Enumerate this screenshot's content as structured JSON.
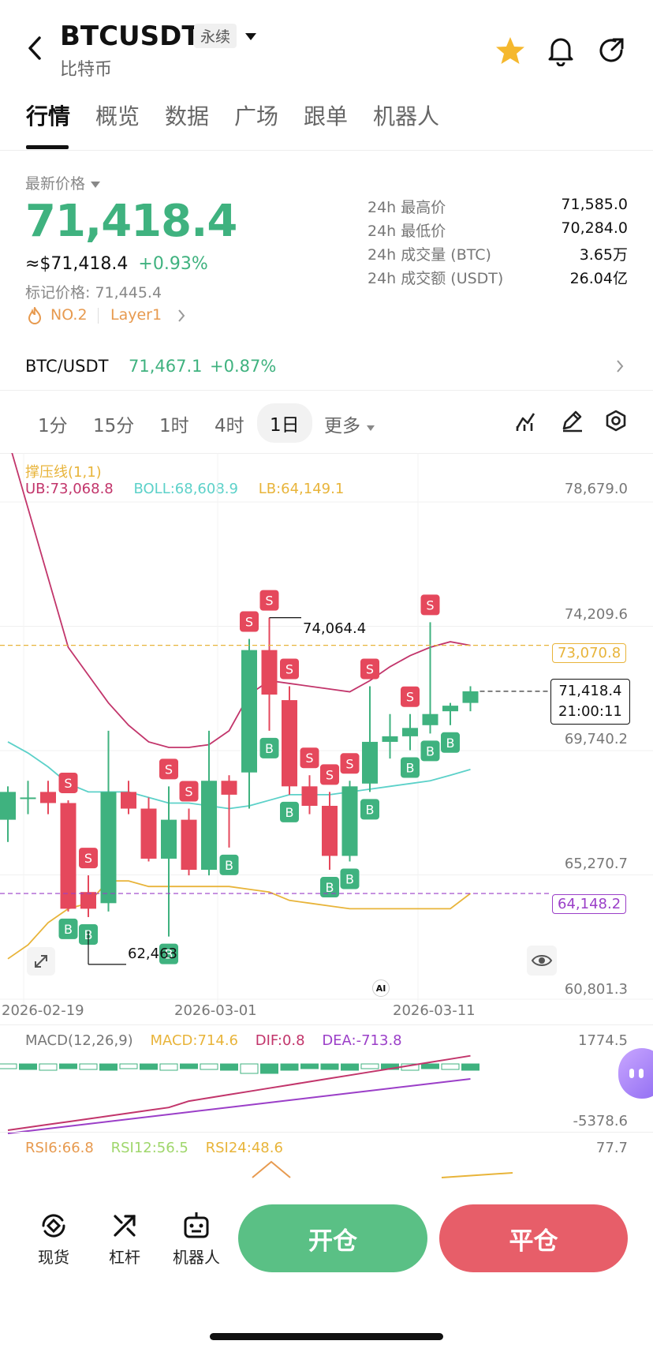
{
  "header": {
    "symbol": "BTCUSDT",
    "perp_badge": "永续",
    "subtitle": "比特币"
  },
  "tabs": [
    {
      "label": "行情",
      "active": true
    },
    {
      "label": "概览",
      "active": false
    },
    {
      "label": "数据",
      "active": false
    },
    {
      "label": "广场",
      "active": false
    },
    {
      "label": "跟单",
      "active": false
    },
    {
      "label": "机器人",
      "active": false
    }
  ],
  "price": {
    "latest_label": "最新价格",
    "last": "71,418.4",
    "usd_equiv": "≈$71,418.4",
    "change_pct": "+0.93%",
    "mark_price": "标记价格: 71,445.4",
    "rank_tag": "NO.2",
    "category_tag": "Layer1"
  },
  "stats": [
    {
      "label": "24h 最高价",
      "value": "71,585.0"
    },
    {
      "label": "24h 最低价",
      "value": "70,284.0"
    },
    {
      "label": "24h 成交量 (BTC)",
      "value": "3.65万"
    },
    {
      "label": "24h 成交额 (USDT)",
      "value": "26.04亿"
    }
  ],
  "spot": {
    "pair": "BTC/USDT",
    "price": "71,467.1",
    "change": "+0.87%"
  },
  "timeframes": [
    {
      "label": "1分",
      "active": false
    },
    {
      "label": "15分",
      "active": false
    },
    {
      "label": "1时",
      "active": false
    },
    {
      "label": "4时",
      "active": false
    },
    {
      "label": "1日",
      "active": true
    },
    {
      "label": "更多",
      "active": false
    }
  ],
  "chart_legend": {
    "sr": "撑压线(1,1)",
    "ub": "UB:73,068.8",
    "boll": "BOLL:68,608.9",
    "lb": "LB:64,149.1"
  },
  "macd_legend": {
    "name": "MACD(12,26,9)",
    "macd": "MACD:714.6",
    "dif": "DIF:0.8",
    "dea": "DEA:-713.8",
    "top": "1774.5",
    "bottom": "-5378.6"
  },
  "rsi_legend": {
    "rsi6": "RSI6:66.8",
    "rsi12": "RSI12:56.5",
    "rsi24": "RSI24:48.6",
    "top": "77.7"
  },
  "chart_data": {
    "type": "candlestick",
    "y_ticks": [
      "78,679.0",
      "74,209.6",
      "69,740.2",
      "65,270.7",
      "60,801.3"
    ],
    "ylim": [
      60801.3,
      78679.0
    ],
    "x_ticks": [
      "2026-02-19",
      "2026-03-01",
      "2026-03-11"
    ],
    "annotations": {
      "high": "74,064.4",
      "low": "62,463",
      "resistance": "73,070.8",
      "support": "64,148.2",
      "last_price": "71,418.4",
      "countdown": "21:00:11",
      "ai_badge": "AI"
    },
    "candles": [
      {
        "o": 66800,
        "h": 68000,
        "l": 66000,
        "c": 67800
      },
      {
        "o": 67600,
        "h": 68200,
        "l": 67000,
        "c": 67600
      },
      {
        "o": 67800,
        "h": 68200,
        "l": 67000,
        "c": 67400
      },
      {
        "o": 67400,
        "h": 67500,
        "l": 63500,
        "c": 63600
      },
      {
        "o": 64200,
        "h": 64800,
        "l": 63300,
        "c": 63600
      },
      {
        "o": 63800,
        "h": 70000,
        "l": 63500,
        "c": 67800
      },
      {
        "o": 67800,
        "h": 68200,
        "l": 67000,
        "c": 67200
      },
      {
        "o": 67200,
        "h": 67600,
        "l": 65300,
        "c": 65400
      },
      {
        "o": 65400,
        "h": 68000,
        "l": 62600,
        "c": 66800
      },
      {
        "o": 66800,
        "h": 67200,
        "l": 64800,
        "c": 65000
      },
      {
        "o": 65000,
        "h": 70000,
        "l": 64800,
        "c": 68200
      },
      {
        "o": 68200,
        "h": 68400,
        "l": 65800,
        "c": 67700
      },
      {
        "o": 68500,
        "h": 73300,
        "l": 67200,
        "c": 72900
      },
      {
        "o": 72900,
        "h": 74064,
        "l": 70000,
        "c": 71300
      },
      {
        "o": 71100,
        "h": 71600,
        "l": 67700,
        "c": 68000
      },
      {
        "o": 68000,
        "h": 68400,
        "l": 67000,
        "c": 67300
      },
      {
        "o": 67300,
        "h": 67800,
        "l": 65000,
        "c": 65500
      },
      {
        "o": 65500,
        "h": 68200,
        "l": 65300,
        "c": 68000
      },
      {
        "o": 68100,
        "h": 71600,
        "l": 67800,
        "c": 69600
      },
      {
        "o": 69600,
        "h": 70600,
        "l": 69000,
        "c": 69800
      },
      {
        "o": 69800,
        "h": 70600,
        "l": 69300,
        "c": 70100
      },
      {
        "o": 70200,
        "h": 73900,
        "l": 69900,
        "c": 70600
      },
      {
        "o": 70700,
        "h": 71000,
        "l": 70200,
        "c": 70900
      },
      {
        "o": 71000,
        "h": 71600,
        "l": 70700,
        "c": 71418
      }
    ],
    "boll_upper": [
      80500,
      78000,
      75500,
      73000,
      72000,
      71000,
      70200,
      69600,
      69400,
      69400,
      69500,
      70000,
      71300,
      71800,
      71700,
      71600,
      71500,
      71400,
      71800,
      72300,
      72700,
      73000,
      73200,
      73068
    ],
    "boll_mid": [
      69600,
      69200,
      68700,
      68100,
      67800,
      67800,
      67800,
      67600,
      67400,
      67400,
      67300,
      67200,
      67300,
      67500,
      67700,
      67700,
      67700,
      67800,
      67900,
      68000,
      68100,
      68200,
      68400,
      68609
    ],
    "boll_lower": [
      61800,
      62300,
      63100,
      63600,
      63800,
      64600,
      64600,
      64400,
      64400,
      64400,
      64400,
      64400,
      64300,
      64200,
      63900,
      63800,
      63700,
      63600,
      63600,
      63600,
      63600,
      63600,
      63600,
      64149
    ],
    "signals": [
      {
        "i": 3,
        "t": "S"
      },
      {
        "i": 4,
        "t": "S"
      },
      {
        "i": 3,
        "t": "B"
      },
      {
        "i": 4,
        "t": "B"
      },
      {
        "i": 8,
        "t": "S"
      },
      {
        "i": 9,
        "t": "S"
      },
      {
        "i": 8,
        "t": "B"
      },
      {
        "i": 11,
        "t": "B"
      },
      {
        "i": 12,
        "t": "S"
      },
      {
        "i": 13,
        "t": "S"
      },
      {
        "i": 13,
        "t": "B"
      },
      {
        "i": 14,
        "t": "S"
      },
      {
        "i": 14,
        "t": "B"
      },
      {
        "i": 15,
        "t": "S"
      },
      {
        "i": 16,
        "t": "S"
      },
      {
        "i": 16,
        "t": "B"
      },
      {
        "i": 17,
        "t": "B"
      },
      {
        "i": 17,
        "t": "S"
      },
      {
        "i": 18,
        "t": "S"
      },
      {
        "i": 18,
        "t": "B"
      },
      {
        "i": 20,
        "t": "S"
      },
      {
        "i": 20,
        "t": "B"
      },
      {
        "i": 21,
        "t": "S"
      },
      {
        "i": 21,
        "t": "B"
      },
      {
        "i": 22,
        "t": "B"
      }
    ]
  },
  "bottom_nav": {
    "spot": "现货",
    "leverage": "杠杆",
    "bot": "机器人",
    "open": "开仓",
    "close": "平仓"
  },
  "colors": {
    "up": "#3fb27f",
    "down": "#e5485c",
    "ub": "#c2356b",
    "mid": "#5cd1c9",
    "lb": "#e8b43a",
    "support": "#9b3fc8"
  }
}
